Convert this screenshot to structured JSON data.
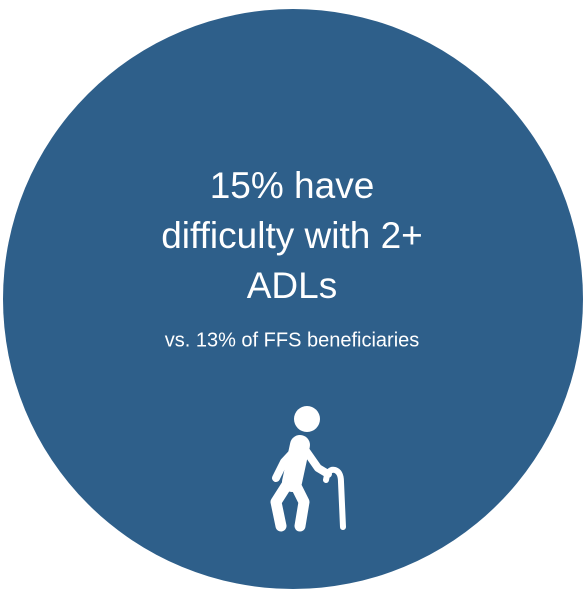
{
  "headline": {
    "lines": [
      "15% have",
      "difficulty with 2+",
      "ADLs"
    ]
  },
  "subtext": "vs. 13% of FFS beneficiaries"
}
